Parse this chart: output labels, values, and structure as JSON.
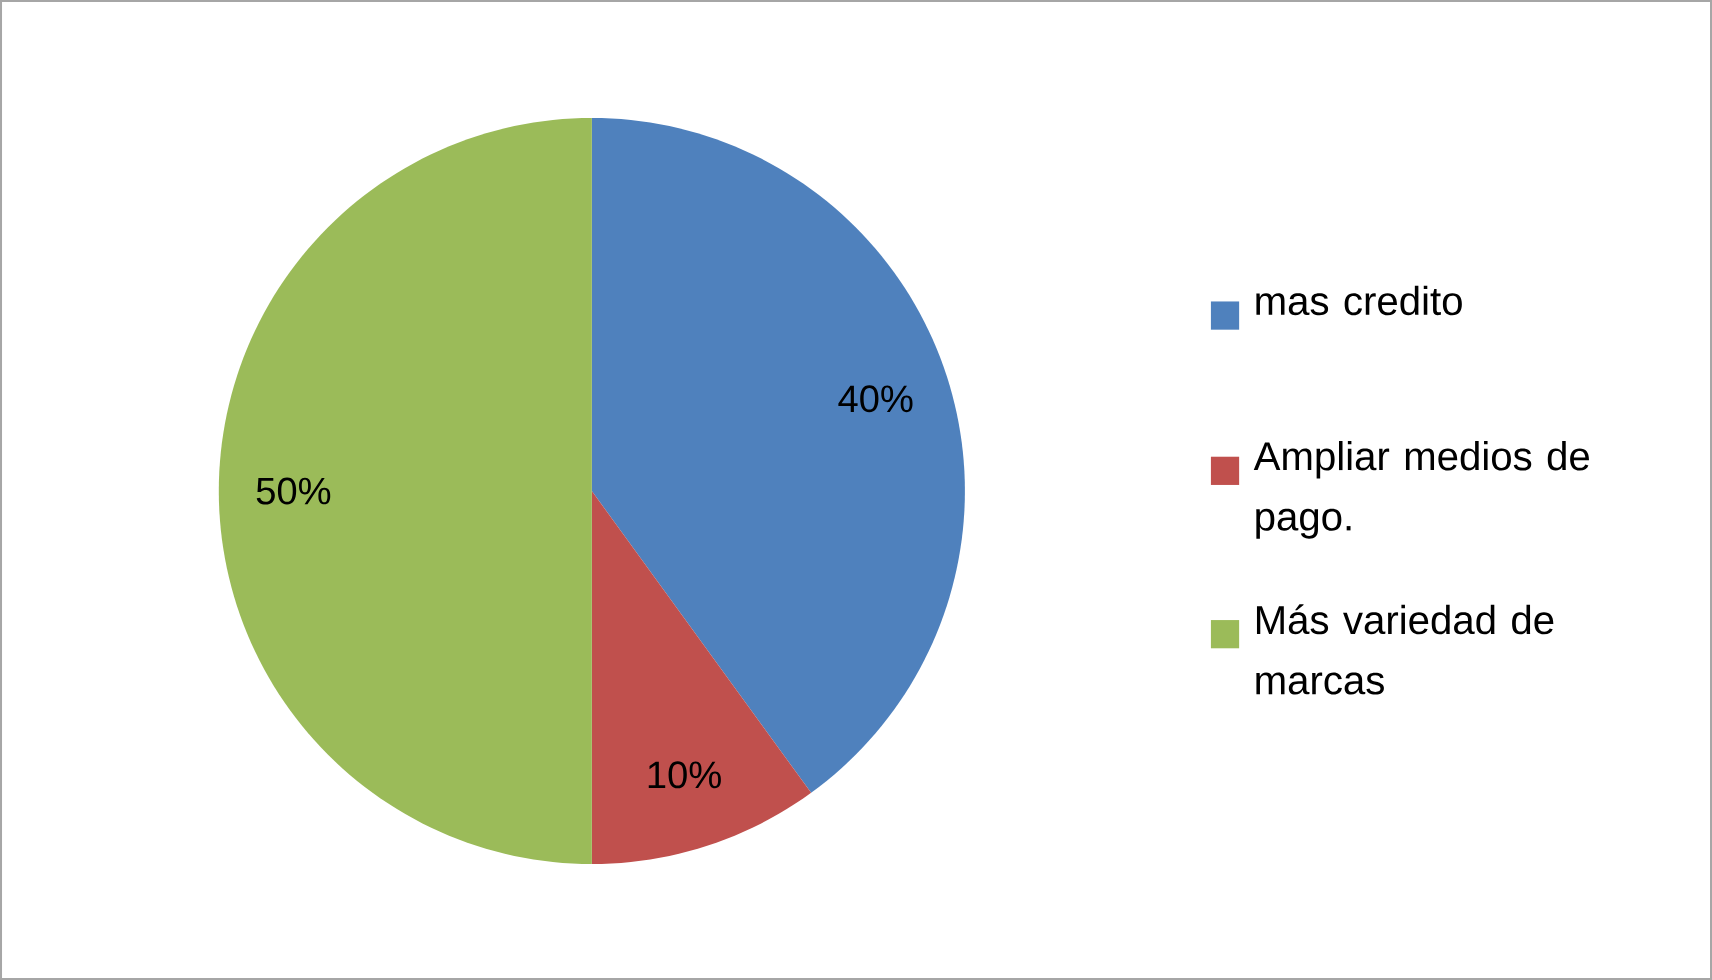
{
  "chart_data": {
    "type": "pie",
    "categories": [
      "mas credito",
      "Ampliar medios de pago.",
      "Más variedad de marcas"
    ],
    "values": [
      40,
      10,
      50
    ],
    "colors": [
      "#4f81bd",
      "#c0504d",
      "#9bbb59"
    ],
    "value_labels": [
      "40%",
      "10%",
      "50%"
    ],
    "legend": "right"
  }
}
